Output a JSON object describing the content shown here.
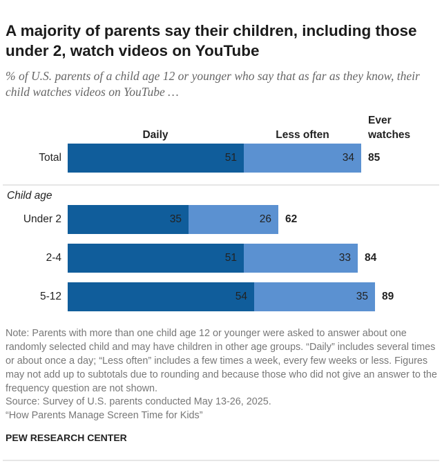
{
  "chart_data": {
    "type": "stacked-bar",
    "title": "A majority of parents say their children, including those under 2, watch videos on YouTube",
    "subtitle": "% of U.S. parents of a child age 12 or younger who say that as far as they know, their child watches videos on YouTube …",
    "categories": [
      "Total",
      "Under 2",
      "2-4",
      "5-12"
    ],
    "group_label": "Child age",
    "series": [
      {
        "name": "Daily",
        "color": "#105d9b",
        "values": [
          51,
          35,
          51,
          54
        ]
      },
      {
        "name": "Less often",
        "color": "#5b91d1",
        "values": [
          34,
          26,
          33,
          35
        ]
      }
    ],
    "totals": {
      "name": "Ever watches",
      "values": [
        85,
        62,
        84,
        89
      ]
    },
    "note": "Note: Parents with more than one child age 12 or younger were asked to answer about one randomly selected child and may have children in other age groups. “Daily” includes several times or about once a day; “Less often” includes a few times a week, every few weeks or less. Figures may not add up to subtotals due to rounding and because those who did not give an answer to the frequency question are not shown.",
    "source": "Source: Survey of U.S. parents conducted May 13-26, 2025.",
    "report": "“How Parents Manage Screen Time for Kids”",
    "brand": "PEW RESEARCH CENTER"
  }
}
